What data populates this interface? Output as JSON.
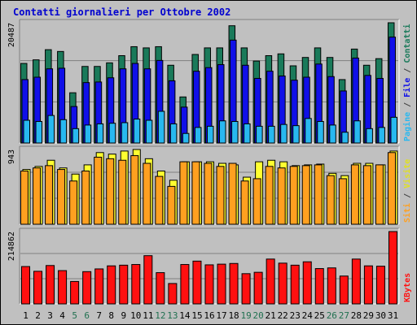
{
  "title": "Contatti giornalieri per Ottobre 2002",
  "colors": {
    "background": "#c0c0c0",
    "title": "#0000d0",
    "contatti": "#1a7a5a",
    "file": "#1010e8",
    "pagine": "#28b8f0",
    "visite": "#ffff30",
    "siti": "#ffa020",
    "kbytes": "#ff1010",
    "weekend_label": "#207050"
  },
  "chart_data": [
    {
      "type": "bar",
      "panel": "top",
      "y_axis_max_label": "20487",
      "right_label": [
        {
          "text": "Pagine",
          "color": "#28b8f0"
        },
        {
          "text": " / ",
          "color": "#404040"
        },
        {
          "text": "File",
          "color": "#1010e8"
        },
        {
          "text": " / ",
          "color": "#404040"
        },
        {
          "text": "Contatti",
          "color": "#1a7a5a"
        }
      ],
      "categories": [
        "1",
        "2",
        "3",
        "4",
        "5",
        "6",
        "7",
        "8",
        "9",
        "10",
        "11",
        "12",
        "13",
        "14",
        "15",
        "16",
        "17",
        "18",
        "19",
        "20",
        "21",
        "22",
        "23",
        "24",
        "25",
        "26",
        "27",
        "28",
        "29",
        "30",
        "31"
      ],
      "series": [
        {
          "name": "Contatti",
          "values": [
            13300,
            13900,
            15600,
            15300,
            8400,
            12800,
            12800,
            13400,
            14600,
            16100,
            15900,
            16100,
            13000,
            7700,
            14800,
            15900,
            15900,
            19600,
            15900,
            13700,
            14600,
            14900,
            12900,
            14300,
            15900,
            14300,
            10600,
            15700,
            13000,
            14100,
            20100
          ]
        },
        {
          "name": "File",
          "values": [
            10600,
            11000,
            12400,
            12500,
            6100,
            10100,
            10200,
            10900,
            12400,
            13300,
            12400,
            13800,
            10400,
            6000,
            12000,
            12600,
            13100,
            17200,
            13000,
            10800,
            12000,
            11200,
            10500,
            11000,
            13200,
            11100,
            8700,
            14200,
            11300,
            10800,
            17700
          ]
        },
        {
          "name": "Pagine",
          "values": [
            3800,
            3600,
            4600,
            3900,
            2400,
            3000,
            3200,
            3300,
            3400,
            4000,
            3800,
            5300,
            3200,
            1600,
            2600,
            2800,
            3700,
            3600,
            3200,
            2800,
            2800,
            3100,
            2900,
            4100,
            3600,
            3000,
            1800,
            3700,
            2400,
            2600,
            4300
          ]
        }
      ]
    },
    {
      "type": "bar",
      "panel": "middle",
      "y_axis_max_label": "943",
      "right_label": [
        {
          "text": "Siti",
          "color": "#ffa020"
        },
        {
          "text": " / ",
          "color": "#404040"
        },
        {
          "text": "Visite",
          "color": "#e0e020"
        }
      ],
      "categories": [
        "1",
        "2",
        "3",
        "4",
        "5",
        "6",
        "7",
        "8",
        "9",
        "10",
        "11",
        "12",
        "13",
        "14",
        "15",
        "16",
        "17",
        "18",
        "19",
        "20",
        "21",
        "22",
        "23",
        "24",
        "25",
        "26",
        "27",
        "28",
        "29",
        "30",
        "31"
      ],
      "series": [
        {
          "name": "Visite",
          "values": [
            713,
            753,
            833,
            733,
            653,
            773,
            933,
            913,
            953,
            973,
            853,
            693,
            573,
            813,
            813,
            813,
            793,
            773,
            613,
            813,
            833,
            813,
            763,
            773,
            783,
            663,
            633,
            793,
            793,
            773,
            953
          ]
        },
        {
          "name": "Siti",
          "values": [
            693,
            733,
            763,
            713,
            563,
            693,
            873,
            853,
            833,
            893,
            793,
            623,
            493,
            813,
            813,
            793,
            753,
            793,
            563,
            593,
            753,
            733,
            753,
            763,
            773,
            633,
            593,
            773,
            763,
            773,
            933
          ]
        }
      ]
    },
    {
      "type": "bar",
      "panel": "bottom",
      "y_axis_max_label": "214862",
      "right_label": [
        {
          "text": "KBytes",
          "color": "#ff1010"
        }
      ],
      "categories": [
        "1",
        "2",
        "3",
        "4",
        "5",
        "6",
        "7",
        "8",
        "9",
        "10",
        "11",
        "12",
        "13",
        "14",
        "15",
        "16",
        "17",
        "18",
        "19",
        "20",
        "21",
        "22",
        "23",
        "24",
        "25",
        "26",
        "27",
        "28",
        "29",
        "30",
        "31"
      ],
      "series": [
        {
          "name": "KBytes",
          "values": [
            110000,
            96000,
            113000,
            98000,
            66000,
            95000,
            103000,
            112000,
            114000,
            116000,
            142000,
            92000,
            60000,
            116000,
            126000,
            115000,
            117000,
            119000,
            89000,
            93000,
            132000,
            120000,
            114000,
            124000,
            104000,
            106000,
            82000,
            132000,
            112000,
            111000,
            213000
          ]
        }
      ]
    }
  ],
  "x_labels": [
    {
      "text": "1",
      "weekend": false
    },
    {
      "text": "2",
      "weekend": false
    },
    {
      "text": "3",
      "weekend": false
    },
    {
      "text": "4",
      "weekend": false
    },
    {
      "text": "5",
      "weekend": true
    },
    {
      "text": "6",
      "weekend": true
    },
    {
      "text": "7",
      "weekend": false
    },
    {
      "text": "8",
      "weekend": false
    },
    {
      "text": "9",
      "weekend": false
    },
    {
      "text": "10",
      "weekend": false
    },
    {
      "text": "11",
      "weekend": false
    },
    {
      "text": "12",
      "weekend": true
    },
    {
      "text": "13",
      "weekend": true
    },
    {
      "text": "14",
      "weekend": false
    },
    {
      "text": "15",
      "weekend": false
    },
    {
      "text": "16",
      "weekend": false
    },
    {
      "text": "17",
      "weekend": false
    },
    {
      "text": "18",
      "weekend": false
    },
    {
      "text": "19",
      "weekend": true
    },
    {
      "text": "20",
      "weekend": true
    },
    {
      "text": "21",
      "weekend": false
    },
    {
      "text": "22",
      "weekend": false
    },
    {
      "text": "23",
      "weekend": false
    },
    {
      "text": "24",
      "weekend": false
    },
    {
      "text": "25",
      "weekend": false
    },
    {
      "text": "26",
      "weekend": true
    },
    {
      "text": "27",
      "weekend": true
    },
    {
      "text": "28",
      "weekend": false
    },
    {
      "text": "29",
      "weekend": false
    },
    {
      "text": "30",
      "weekend": false
    },
    {
      "text": "31",
      "weekend": false
    }
  ]
}
